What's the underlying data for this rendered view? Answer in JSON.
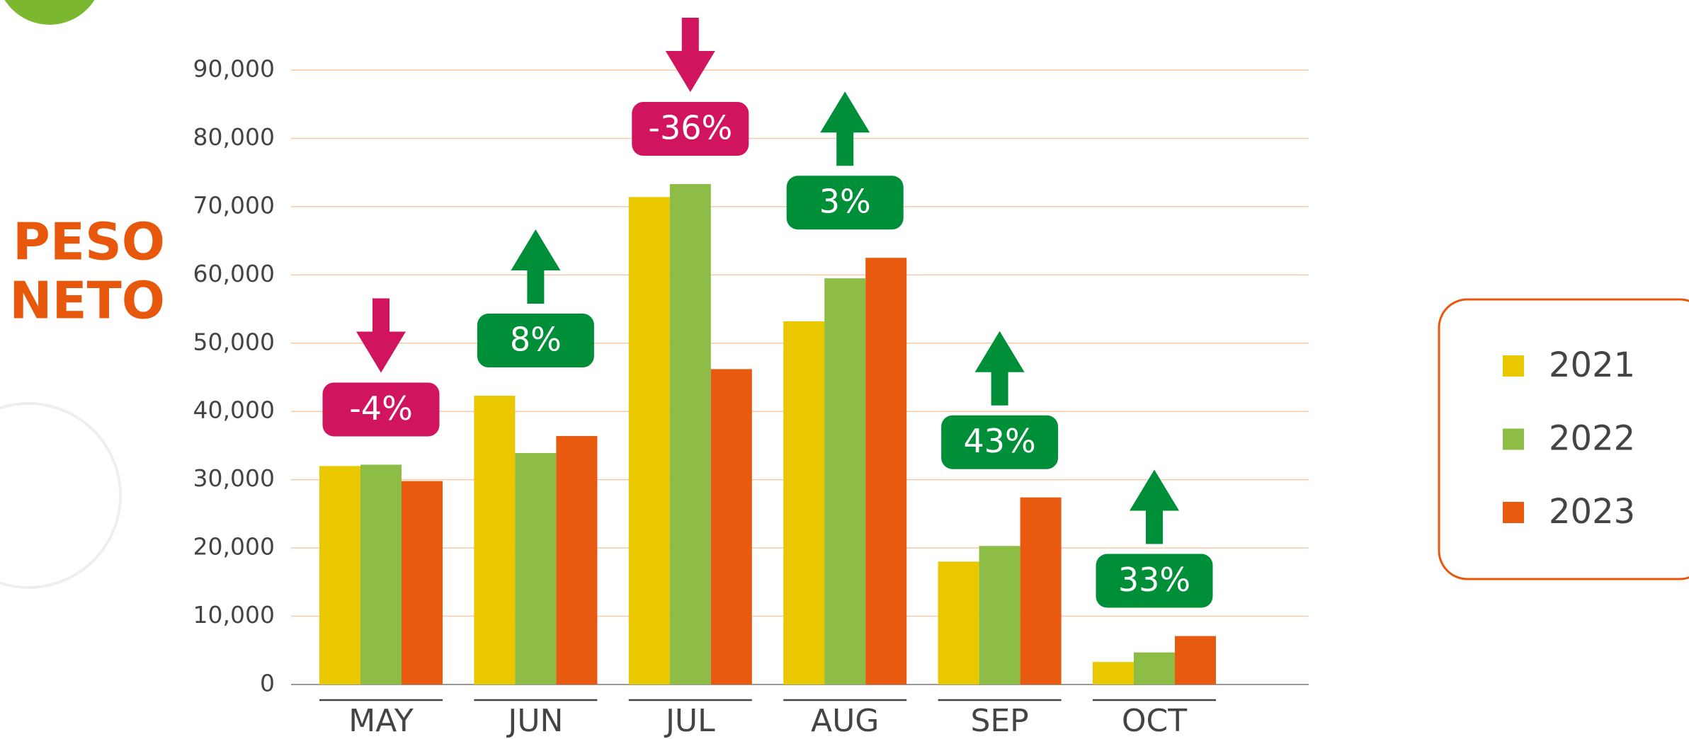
{
  "chart_data": {
    "type": "bar",
    "title": [
      "PESO",
      "NETO"
    ],
    "categories": [
      "MAY",
      "JUN",
      "JUL",
      "AUG",
      "SEP",
      "OCT"
    ],
    "series": [
      {
        "name": "2021",
        "color": "#eac800",
        "values": [
          32000,
          42300,
          71400,
          53200,
          18000,
          3300
        ]
      },
      {
        "name": "2022",
        "color": "#8dbd46",
        "values": [
          32200,
          33900,
          73300,
          59500,
          20300,
          4700
        ]
      },
      {
        "name": "2023",
        "color": "#e85a0f",
        "values": [
          29800,
          36400,
          46200,
          62500,
          27400,
          7100
        ]
      }
    ],
    "annotations": [
      {
        "label": "-4%",
        "direction": "down"
      },
      {
        "label": "8%",
        "direction": "up"
      },
      {
        "label": "-36%",
        "direction": "down"
      },
      {
        "label": "3%",
        "direction": "up"
      },
      {
        "label": "43%",
        "direction": "up"
      },
      {
        "label": "33%",
        "direction": "up"
      }
    ],
    "ylim": [
      0,
      90000
    ],
    "yticks": [
      0,
      {
        "value": 10000,
        "label": "10,000"
      },
      {
        "value": 20000,
        "label": "20,000"
      },
      {
        "value": 30000,
        "label": "30,000"
      },
      {
        "value": 40000,
        "label": "40,000"
      },
      {
        "value": 50000,
        "label": "50,000"
      },
      {
        "value": 60000,
        "label": "60,000"
      },
      {
        "value": 70000,
        "label": "70,000"
      },
      {
        "value": 80000,
        "label": "80,000"
      },
      {
        "value": 90000,
        "label": "90,000"
      }
    ],
    "grid": true,
    "legend": "right"
  }
}
